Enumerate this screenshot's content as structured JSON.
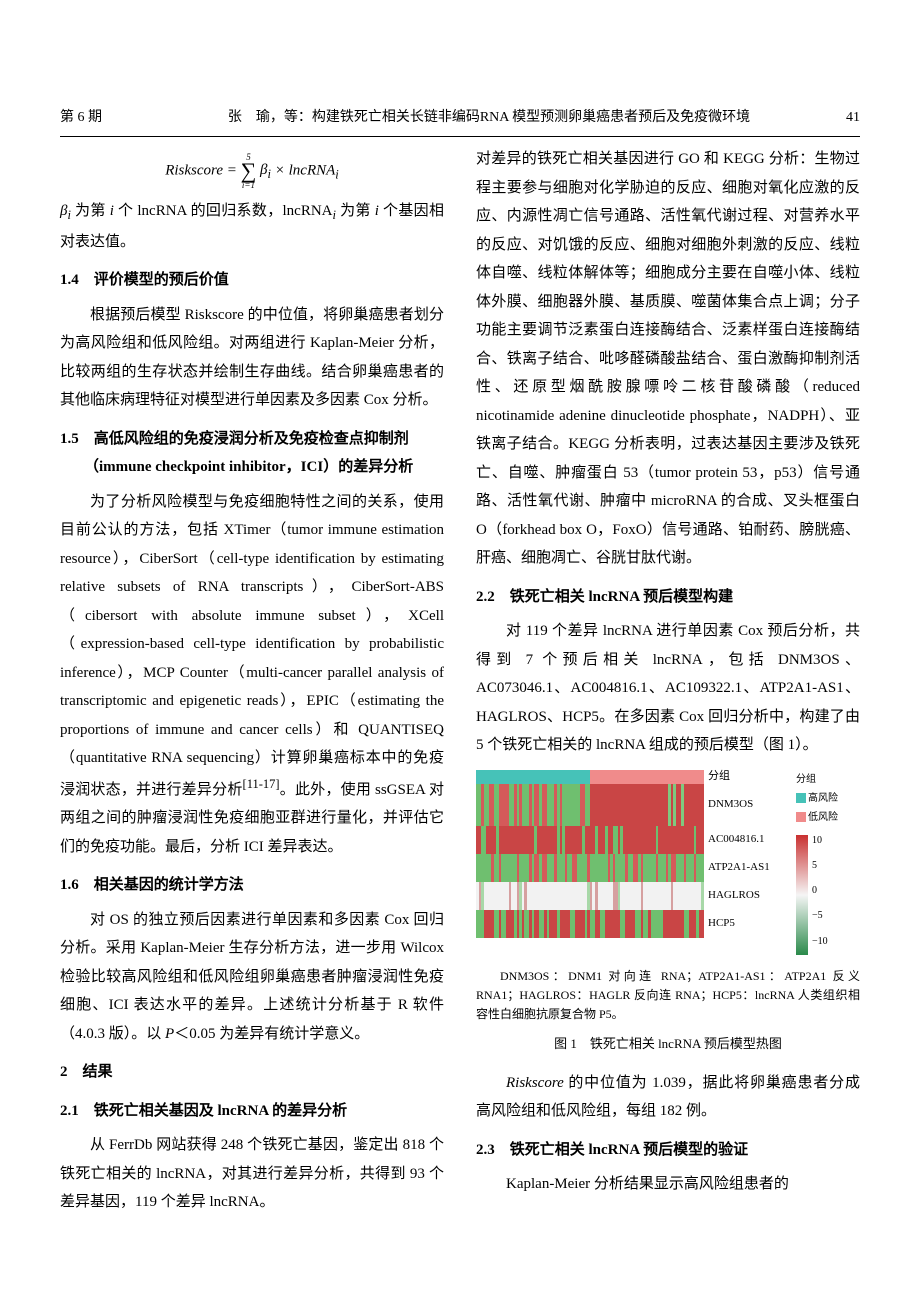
{
  "header": {
    "issue": "第 6 期",
    "title": "张　瑜，等：构建铁死亡相关长链非编码RNA 模型预测卵巢癌患者预后及免疫微环境",
    "page": "41"
  },
  "left": {
    "formula_html": "Riskscore = Σ<sub>i=1</sub><sup>5</sup> β<sub>i</sub> × lncRNA<sub>i</sub>",
    "formula_note": "β<sub>i</sub> 为第 i 个 lncRNA 的回归系数，lncRNA<sub>i</sub> 为第 i 个基因相对表达值。",
    "s14_h": "1.4　评价模型的预后价值",
    "s14_p": "根据预后模型 Riskscore 的中位值，将卵巢癌患者划分为高风险组和低风险组。对两组进行 Kaplan-Meier 分析，比较两组的生存状态并绘制生存曲线。结合卵巢癌患者的其他临床病理特征对模型进行单因素及多因素 Cox 分析。",
    "s15_h": "1.5　高低风险组的免疫浸润分析及免疫检查点抑制剂（immune checkpoint inhibitor，ICI）的差异分析",
    "s15_p": "为了分析风险模型与免疫细胞特性之间的关系，使用目前公认的方法，包括 XTimer（tumor immune estimation resource），CiberSort（cell-type identification by estimating relative subsets of RNA transcripts），CiberSort-ABS（cibersort with absolute immune subset），XCell（expression-based cell-type identification by probabilistic inference），MCP Counter（multi-cancer parallel analysis of transcriptomic and epigenetic reads），EPIC（estimating the proportions of immune and cancer cells）和 QUANTISEQ（quantitative RNA sequencing）计算卵巢癌标本中的免疫浸润状态，并进行差异分析<sup>[11-17]</sup>。此外，使用 ssGSEA 对两组之间的肿瘤浸润性免疫细胞亚群进行量化，并评估它们的免疫功能。最后，分析 ICI 差异表达。",
    "s16_h": "1.6　相关基因的统计学方法",
    "s16_p": "对 OS 的独立预后因素进行单因素和多因素 Cox 回归分析。采用 Kaplan-Meier 生存分析方法，进一步用 Wilcox 检验比较高风险组和低风险组卵巢癌患者肿瘤浸润性免疫细胞、ICI 表达水平的差异。上述统计分析基于 R 软件（4.0.3 版）。以 P＜0.05 为差异有统计学意义。",
    "s2_h": "2　结果",
    "s21_h": "2.1　铁死亡相关基因及 lncRNA 的差异分析",
    "s21_p": "从 FerrDb 网站获得 248 个铁死亡基因，鉴定出 818 个铁死亡相关的 lncRNA，对其进行差异分析，共得到 93 个差异基因，119 个差异 lncRNA。"
  },
  "right": {
    "p_top": "对差异的铁死亡相关基因进行 GO 和 KEGG 分析：生物过程主要参与细胞对化学胁迫的反应、细胞对氧化应激的反应、内源性凋亡信号通路、活性氧代谢过程、对营养水平的反应、对饥饿的反应、细胞对细胞外刺激的反应、线粒体自噬、线粒体解体等；细胞成分主要在自噬小体、线粒体外膜、细胞器外膜、基质膜、噬菌体集合点上调；分子功能主要调节泛素蛋白连接酶结合、泛素样蛋白连接酶结合、铁离子结合、吡哆醛磷酸盐结合、蛋白激酶抑制剂活性、还原型烟酰胺腺嘌呤二核苷酸磷酸（reduced nicotinamide adenine dinucleotide phosphate，NADPH）、亚铁离子结合。KEGG 分析表明，过表达基因主要涉及铁死亡、自噬、肿瘤蛋白 53（tumor protein 53，p53）信号通路、活性氧代谢、肿瘤中 microRNA 的合成、叉头框蛋白 O（forkhead box O，FoxO）信号通路、铂耐药、膀胱癌、肝癌、细胞凋亡、谷胱甘肽代谢。",
    "s22_h": "2.2　铁死亡相关 lncRNA 预后模型构建",
    "s22_p": "对 119 个差异 lncRNA 进行单因素 Cox 预后分析，共得到 7 个预后相关 lncRNA，包括 DNM3OS、AC073046.1、AC004816.1、AC109322.1、ATP2A1-AS1、HAGLROS、HCP5。在多因素 Cox 回归分析中，构建了由 5 个铁死亡相关的 lncRNA 组成的预后模型（图 1）。",
    "heatmap": {
      "header_colors": {
        "left": "#46c2b8",
        "right": "#f08b8b"
      },
      "rows": [
        {
          "label": "DNM3OS",
          "pattern": "A"
        },
        {
          "label": "AC004816.1",
          "pattern": "B"
        },
        {
          "label": "ATP2A1-AS1",
          "pattern": "C"
        },
        {
          "label": "HAGLROS",
          "pattern": "D"
        },
        {
          "label": "HCP5",
          "pattern": "E"
        }
      ],
      "group_label": "分组",
      "legend_group_title": "分组",
      "legend_high": "高风险",
      "legend_low": "低风险",
      "legend_high_color": "#46c2b8",
      "legend_low_color": "#f08b8b",
      "colorbar_ticks": [
        "10",
        "5",
        "0",
        "−5",
        "−10"
      ],
      "colorbar_top": "#c93030",
      "colorbar_mid": "#f5f5f5",
      "colorbar_bot": "#2a8a4a"
    },
    "fignote": "DNM3OS：DNM1 对向连 RNA；ATP2A1-AS1：ATP2A1 反义 RNA1；HAGLROS：HAGLR 反向连 RNA；HCP5：lncRNA 人类组织相容性白细胞抗原复合物 P5。",
    "figcap": "图 1　铁死亡相关 lncRNA 预后模型热图",
    "p_after": "Riskscore 的中位值为 1.039，据此将卵巢癌患者分成高风险组和低风险组，每组 182 例。",
    "s23_h": "2.3　铁死亡相关 lncRNA 预后模型的验证",
    "s23_p": "Kaplan-Meier 分析结果显示高风险组患者的"
  }
}
